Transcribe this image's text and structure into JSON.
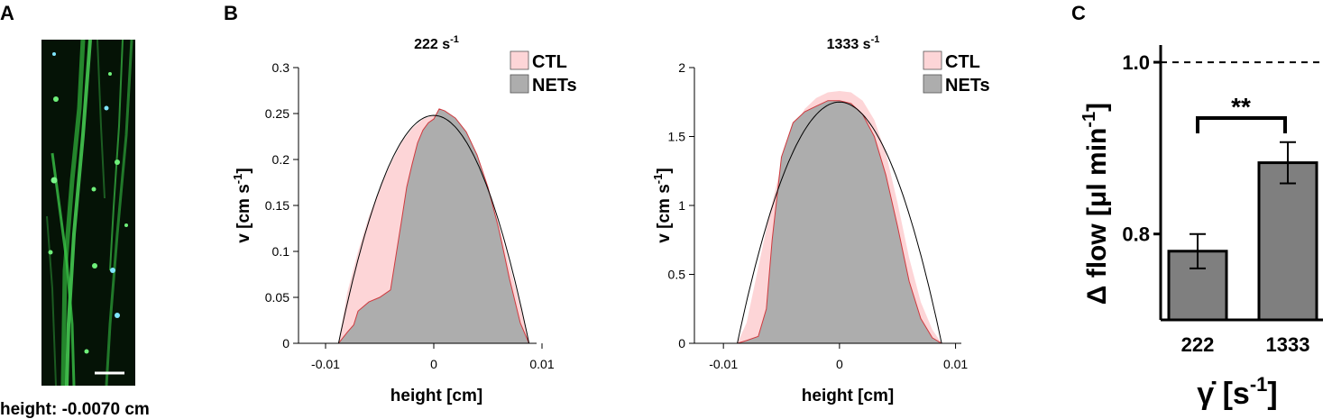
{
  "panels": {
    "a": {
      "letter": "A",
      "caption": "height: -0.0070 cm",
      "scale_bar": "scale-bar"
    },
    "b": {
      "letter": "B"
    },
    "c": {
      "letter": "C"
    }
  },
  "colors": {
    "ctl_fill": "#fdd5d7",
    "ctl_edge": "#cf3a3f",
    "nets_fill": "#adadad",
    "bar_fill": "#7f7f7f",
    "micrograph_bg": "#051306",
    "fiber": "#39c846"
  },
  "chart_data": [
    {
      "type": "area",
      "title": "222 s",
      "title_exp": "-1",
      "xlabel": "height [cm]",
      "ylabel": "v [cm s",
      "ylabel_exp": "-1",
      "ylabel_close": "]",
      "xlim": [
        -0.0125,
        0.0095
      ],
      "ylim": [
        0,
        0.3
      ],
      "xticks": [
        -0.01,
        0,
        0.01
      ],
      "xtick_labels": [
        "-0.01",
        "0",
        "0.01"
      ],
      "yticks": [
        0,
        0.05,
        0.1,
        0.15,
        0.2,
        0.25,
        0.3
      ],
      "ytick_labels": [
        "0",
        "0.05",
        "0.1",
        "0.15",
        "0.2",
        "0.25",
        "0.3"
      ],
      "legend": [
        "CTL",
        "NETs"
      ],
      "legend_position": "top-right",
      "fit": {
        "type": "parabola",
        "vmax": 0.248,
        "half_width": 0.0088
      },
      "series": [
        {
          "name": "CTL",
          "x": [
            -0.0088,
            -0.008,
            -0.007,
            -0.006,
            -0.005,
            -0.004,
            -0.003,
            -0.002,
            -0.001,
            0.0,
            0.001,
            0.002,
            0.003,
            0.004,
            0.005,
            0.006,
            0.007,
            0.008,
            0.0088
          ],
          "v": [
            0.0,
            0.055,
            0.1,
            0.138,
            0.168,
            0.195,
            0.218,
            0.234,
            0.244,
            0.248,
            0.247,
            0.238,
            0.222,
            0.198,
            0.168,
            0.128,
            0.085,
            0.04,
            0.0
          ]
        },
        {
          "name": "NETs",
          "x": [
            -0.0088,
            -0.008,
            -0.0074,
            -0.007,
            -0.006,
            -0.005,
            -0.004,
            -0.0035,
            -0.003,
            -0.0025,
            -0.002,
            -0.0015,
            -0.001,
            -0.0005,
            0.0,
            0.0005,
            0.001,
            0.002,
            0.003,
            0.004,
            0.005,
            0.006,
            0.007,
            0.008,
            0.0088
          ],
          "v": [
            0.0,
            0.012,
            0.02,
            0.035,
            0.045,
            0.05,
            0.058,
            0.095,
            0.132,
            0.17,
            0.195,
            0.218,
            0.232,
            0.24,
            0.244,
            0.255,
            0.253,
            0.245,
            0.23,
            0.205,
            0.17,
            0.125,
            0.07,
            0.022,
            0.0
          ]
        }
      ]
    },
    {
      "type": "area",
      "title": "1333 s",
      "title_exp": "-1",
      "xlabel": "height [cm]",
      "ylabel": "v [cm s",
      "ylabel_exp": "-1",
      "ylabel_close": "]",
      "xlim": [
        -0.0125,
        0.0105
      ],
      "ylim": [
        0,
        2
      ],
      "xticks": [
        -0.01,
        0,
        0.01
      ],
      "xtick_labels": [
        "-0.01",
        "0",
        "0.01"
      ],
      "yticks": [
        0,
        0.5,
        1,
        1.5,
        2
      ],
      "ytick_labels": [
        "0",
        "0.5",
        "1",
        "1.5",
        "2"
      ],
      "legend": [
        "CTL",
        "NETs"
      ],
      "legend_position": "top-right",
      "fit": {
        "type": "parabola",
        "vmax": 1.75,
        "half_width": 0.0088
      },
      "series": [
        {
          "name": "CTL",
          "x": [
            -0.0088,
            -0.008,
            -0.007,
            -0.006,
            -0.005,
            -0.004,
            -0.003,
            -0.002,
            -0.001,
            0.0,
            0.001,
            0.002,
            0.003,
            0.004,
            0.005,
            0.006,
            0.007,
            0.008,
            0.0088
          ],
          "v": [
            0.0,
            0.15,
            0.55,
            0.95,
            1.3,
            1.55,
            1.7,
            1.78,
            1.82,
            1.83,
            1.82,
            1.76,
            1.62,
            1.38,
            1.02,
            0.62,
            0.3,
            0.1,
            0.0
          ]
        },
        {
          "name": "NETs",
          "x": [
            -0.0088,
            -0.008,
            -0.007,
            -0.0063,
            -0.0058,
            -0.005,
            -0.004,
            -0.003,
            -0.002,
            -0.001,
            0.0,
            0.001,
            0.002,
            0.003,
            0.004,
            0.005,
            0.006,
            0.007,
            0.008,
            0.0088
          ],
          "v": [
            0.0,
            0.02,
            0.05,
            0.25,
            0.75,
            1.35,
            1.6,
            1.68,
            1.72,
            1.76,
            1.76,
            1.74,
            1.66,
            1.5,
            1.22,
            0.85,
            0.45,
            0.18,
            0.04,
            0.0
          ]
        }
      ]
    },
    {
      "type": "bar",
      "categories": [
        "222",
        "1333"
      ],
      "values": [
        0.78,
        0.883
      ],
      "errors": [
        0.02,
        0.024
      ],
      "ylim": [
        0.7,
        1.02
      ],
      "yticks": [
        0.8,
        1.0
      ],
      "ytick_labels": [
        "0.8",
        "1.0"
      ],
      "reference_line": 1.0,
      "significance": "**",
      "ylabel": "Δ flow [μl min",
      "ylabel_exp": "-1",
      "ylabel_close": "]",
      "xlabel": "γ̇ [s",
      "xlabel_exp": "-1",
      "xlabel_close": "]"
    }
  ]
}
